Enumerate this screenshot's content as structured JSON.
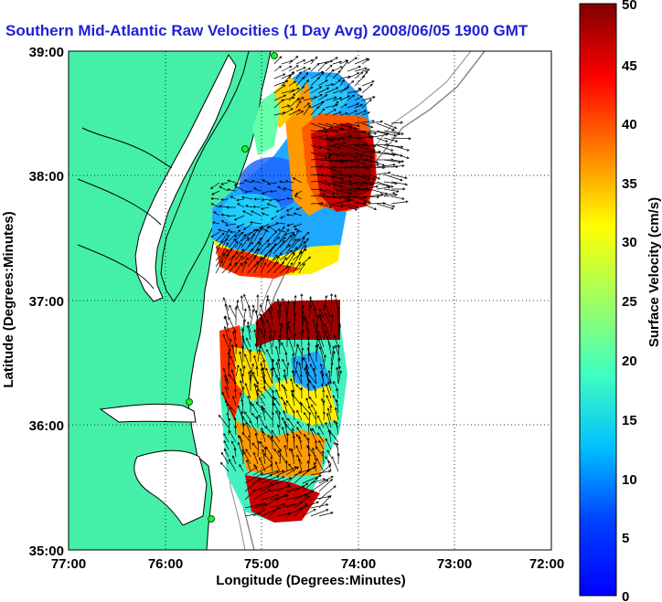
{
  "title": "Southern Mid-Atlantic Raw Velocities (1 Day Avg) 2008/06/05 1900 GMT",
  "xlabel": "Longitude (Degrees:Minutes)",
  "ylabel": "Latitude (Degrees:Minutes)",
  "colorbar_label": "Surface Velocity (cm/s)",
  "x_ticks": [
    "77:00",
    "76:00",
    "75:00",
    "74:00",
    "73:00",
    "72:00"
  ],
  "y_ticks": [
    "39:00",
    "38:00",
    "37:00",
    "36:00",
    "35:00"
  ],
  "colorbar_ticks": [
    "50",
    "45",
    "40",
    "35",
    "30",
    "25",
    "20",
    "15",
    "10",
    "5",
    "0"
  ],
  "colors": {
    "land": "#44f0a8",
    "water": "#ffffff",
    "title": "#1f1fd6",
    "grid": "#000000",
    "coastline": "#000000",
    "bathymetry": "#8a8a8a"
  },
  "chart_data": {
    "type": "heatmap",
    "title": "Southern Mid-Atlantic Raw Velocities (1 Day Avg) 2008/06/05 1900 GMT",
    "xlabel": "Longitude (Degrees:Minutes)",
    "ylabel": "Latitude (Degrees:Minutes)",
    "xlim": [
      -77,
      -72
    ],
    "ylim": [
      35,
      39
    ],
    "color_range": [
      0,
      50
    ],
    "color_units": "cm/s",
    "grid": true
  }
}
